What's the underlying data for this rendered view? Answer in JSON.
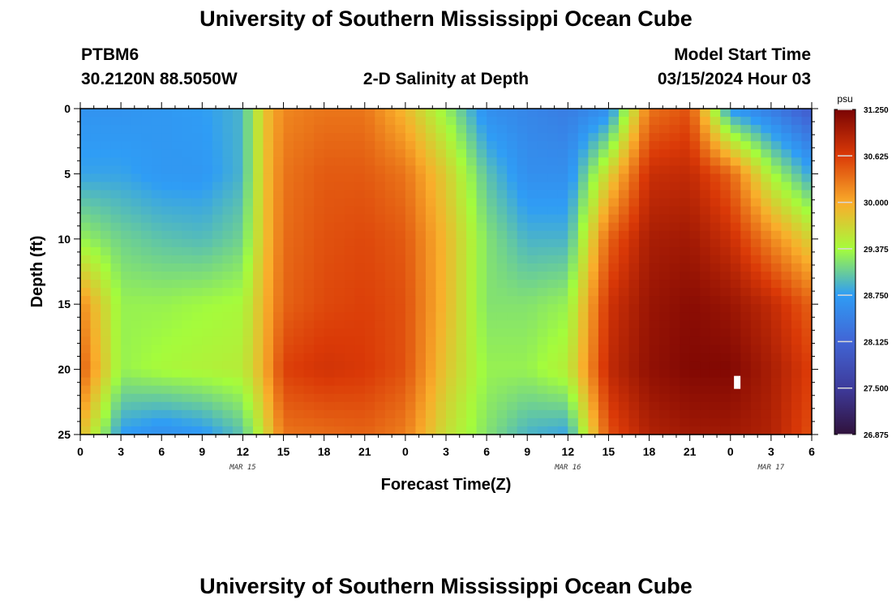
{
  "header": {
    "title_top": "University of Southern Mississippi Ocean Cube",
    "title_bottom": "University of Southern Mississippi Ocean Cube",
    "station_id": "PTBM6",
    "station_coords": "30.2120N  88.5050W",
    "plot_title": "2-D Salinity at Depth",
    "model_start_label": "Model Start Time",
    "model_start_value": "03/15/2024 Hour 03"
  },
  "chart_data": {
    "type": "heatmap",
    "title": "2-D Salinity at Depth",
    "xlabel": "Forecast Time(Z)",
    "ylabel": "Depth (ft)",
    "x_tick_labels": [
      "0",
      "3",
      "6",
      "9",
      "12",
      "15",
      "18",
      "21",
      "0",
      "3",
      "6",
      "9",
      "12",
      "15",
      "18",
      "21",
      "0",
      "3",
      "6"
    ],
    "x_tick_hours": [
      0,
      3,
      6,
      9,
      12,
      15,
      18,
      21,
      24,
      27,
      30,
      33,
      36,
      39,
      42,
      45,
      48,
      51,
      54
    ],
    "day_labels": [
      {
        "label": "MAR 15",
        "hour": 12
      },
      {
        "label": "MAR 16",
        "hour": 36
      },
      {
        "label": "MAR 17",
        "hour": 51
      }
    ],
    "x_range_hours": [
      0,
      54
    ],
    "y_tick_labels": [
      "0",
      "5",
      "10",
      "15",
      "20",
      "25"
    ],
    "y_tick_values": [
      0,
      5,
      10,
      15,
      20,
      25
    ],
    "ylim": [
      0,
      25
    ],
    "colorbar": {
      "unit": "psu",
      "min": 26.875,
      "max": 31.25,
      "tick_labels": [
        "31.250",
        "30.625",
        "30.000",
        "29.375",
        "28.750",
        "28.125",
        "27.500",
        "26.875"
      ],
      "tick_values": [
        31.25,
        30.625,
        30.0,
        29.375,
        28.75,
        28.125,
        27.5,
        26.875
      ]
    },
    "salinity_grid": {
      "depths_ft": [
        0,
        5,
        10,
        15,
        20,
        25
      ],
      "hours": [
        0,
        3,
        6,
        9,
        12,
        13.5,
        15,
        18,
        21,
        24,
        27,
        30,
        33,
        36,
        39,
        42,
        45,
        48,
        51,
        54
      ],
      "values": [
        [
          28.65,
          28.65,
          28.7,
          28.75,
          28.9,
          29.8,
          30.2,
          30.3,
          30.3,
          29.9,
          29.3,
          28.6,
          28.5,
          28.4,
          28.6,
          30.3,
          30.5,
          28.7,
          28.4,
          28.0
        ],
        [
          28.8,
          28.8,
          28.7,
          28.7,
          28.9,
          29.8,
          30.3,
          30.45,
          30.45,
          30.3,
          29.75,
          29.0,
          28.6,
          28.6,
          29.7,
          30.75,
          30.8,
          30.4,
          29.4,
          28.8
        ],
        [
          29.3,
          29.1,
          29.0,
          28.95,
          29.1,
          29.8,
          30.35,
          30.5,
          30.55,
          30.45,
          29.9,
          29.2,
          28.9,
          28.9,
          30.4,
          30.95,
          31.0,
          30.75,
          30.2,
          29.7
        ],
        [
          30.2,
          29.3,
          29.3,
          29.35,
          29.4,
          29.9,
          30.4,
          30.55,
          30.6,
          30.5,
          29.9,
          29.2,
          29.2,
          29.3,
          30.7,
          31.05,
          31.15,
          31.05,
          30.8,
          30.4
        ],
        [
          30.45,
          29.3,
          29.4,
          29.45,
          29.5,
          29.95,
          30.6,
          30.7,
          30.65,
          30.5,
          29.8,
          29.3,
          29.3,
          29.5,
          30.8,
          31.1,
          31.2,
          31.2,
          30.95,
          30.6
        ],
        [
          29.9,
          28.75,
          28.6,
          28.7,
          29.0,
          29.6,
          30.3,
          30.35,
          30.4,
          30.25,
          29.6,
          29.2,
          28.9,
          28.8,
          30.5,
          30.9,
          31.0,
          31.0,
          30.9,
          30.5
        ]
      ]
    },
    "missing_marker": {
      "hour": 48.5,
      "depth_ft": 21.0
    }
  }
}
